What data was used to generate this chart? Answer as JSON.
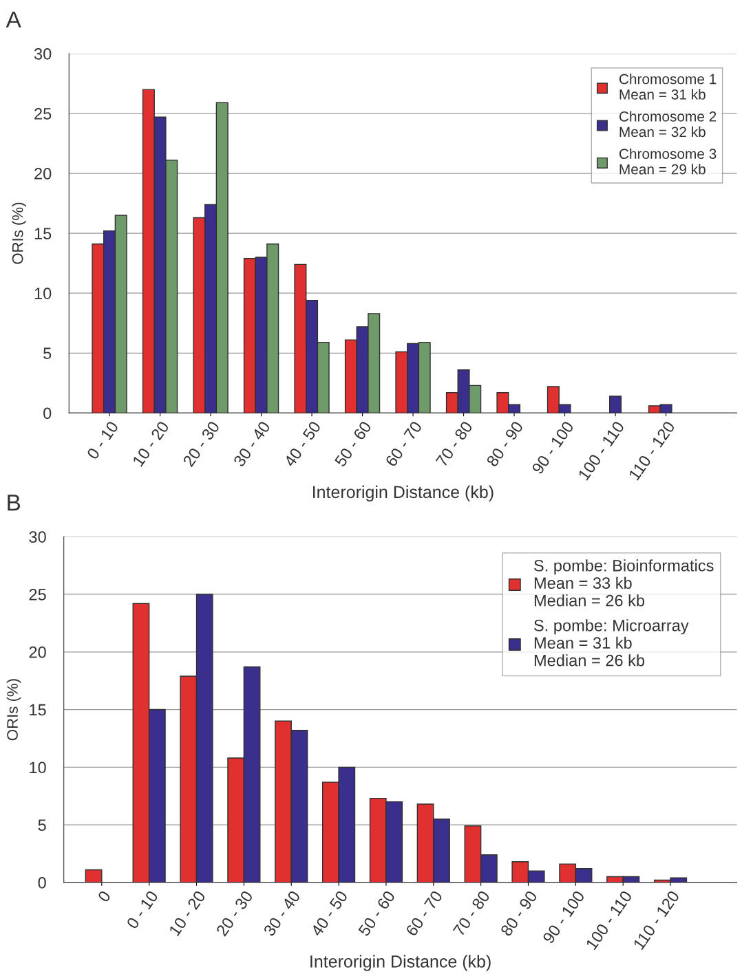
{
  "chart_data": [
    {
      "type": "bar",
      "title": "A",
      "xlabel": "Interorigin Distance (kb)",
      "ylabel": "ORIs (%)",
      "categories": [
        "0 - 10",
        "10 - 20",
        "20 - 30",
        "30 - 40",
        "40 - 50",
        "50 - 60",
        "60 - 70",
        "70 - 80",
        "80 - 90",
        "90 - 100",
        "100 - 110",
        "110 - 120"
      ],
      "series": [
        {
          "name": "Chromosome 1\nMean = 31 kb",
          "color": "#e03030",
          "values": [
            14.1,
            27.0,
            16.3,
            12.9,
            12.4,
            6.1,
            5.1,
            1.7,
            1.7,
            2.2,
            null,
            0.6
          ]
        },
        {
          "name": "Chromosome 2\nMean = 32 kb",
          "color": "#3a2f8c",
          "values": [
            15.2,
            24.7,
            17.4,
            13.0,
            9.4,
            7.2,
            5.8,
            3.6,
            0.7,
            0.7,
            1.4,
            0.7
          ]
        },
        {
          "name": "Chromosome 3\nMean = 29 kb",
          "color": "#6f9a6a",
          "values": [
            16.5,
            21.1,
            25.9,
            14.1,
            5.9,
            8.3,
            5.9,
            2.3,
            null,
            null,
            null,
            null
          ]
        }
      ],
      "ylim": [
        0,
        30
      ],
      "yticks": [
        0,
        5,
        10,
        15,
        20,
        25,
        30
      ],
      "grid": "y",
      "legend": "top right"
    },
    {
      "type": "bar",
      "title": "B",
      "xlabel": "Interorigin Distance (kb)",
      "ylabel": "ORIs (%)",
      "categories": [
        "0",
        "0 - 10",
        "10 - 20",
        "20 - 30",
        "30 - 40",
        "40 - 50",
        "50 - 60",
        "60 - 70",
        "70 - 80",
        "80 - 90",
        "90 - 100",
        "100 - 110",
        "110 - 120"
      ],
      "series": [
        {
          "name": "S. pombe: Bioinformatics\nMean = 33 kb\nMedian = 26 kb",
          "color": "#e03030",
          "values": [
            1.1,
            24.2,
            17.9,
            10.8,
            14.0,
            8.7,
            7.3,
            6.8,
            4.9,
            1.8,
            1.6,
            0.5,
            0.2
          ]
        },
        {
          "name": "S. pombe: Microarray\nMean = 31 kb\nMedian = 26 kb",
          "color": "#3a2f8c",
          "values": [
            null,
            15.0,
            25.0,
            18.7,
            13.2,
            10.0,
            7.0,
            5.5,
            2.4,
            1.0,
            1.2,
            0.5,
            0.4
          ]
        }
      ],
      "ylim": [
        0,
        30
      ],
      "yticks": [
        0,
        5,
        10,
        15,
        20,
        25,
        30
      ],
      "grid": "y",
      "legend": "top right"
    }
  ]
}
